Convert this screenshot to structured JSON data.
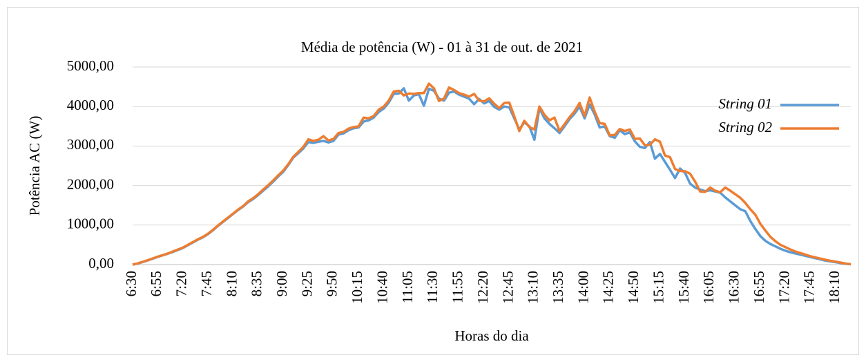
{
  "chart_data": {
    "type": "line",
    "title": "Média de potência (W) - 01 à 31 de out. de 2021",
    "x_label": "Horas do dia",
    "y_label": "Potência AC (W)",
    "categories": [
      "6:30",
      null,
      null,
      null,
      null,
      "6:55",
      null,
      null,
      null,
      null,
      "7:20",
      null,
      null,
      null,
      null,
      "7:45",
      null,
      null,
      null,
      null,
      "8:10",
      null,
      null,
      null,
      null,
      "8:35",
      null,
      null,
      null,
      null,
      "9:00",
      null,
      null,
      null,
      null,
      "9:25",
      null,
      null,
      null,
      null,
      "9:50",
      null,
      null,
      null,
      null,
      "10:15",
      null,
      null,
      null,
      null,
      "10:40",
      null,
      null,
      null,
      null,
      "11:05",
      null,
      null,
      null,
      null,
      "11:30",
      null,
      null,
      null,
      null,
      "11:55",
      null,
      null,
      null,
      null,
      "12:20",
      null,
      null,
      null,
      null,
      "12:45",
      null,
      null,
      null,
      null,
      "13:10",
      null,
      null,
      null,
      null,
      "13:35",
      null,
      null,
      null,
      null,
      "14:00",
      null,
      null,
      null,
      null,
      "14:25",
      null,
      null,
      null,
      null,
      "14:50",
      null,
      null,
      null,
      null,
      "15:15",
      null,
      null,
      null,
      null,
      "15:40",
      null,
      null,
      null,
      null,
      "16:05",
      null,
      null,
      null,
      null,
      "16:30",
      null,
      null,
      null,
      null,
      "16:55",
      null,
      null,
      null,
      null,
      "17:20",
      null,
      null,
      null,
      null,
      "17:45",
      null,
      null,
      null,
      null,
      "18:10",
      null,
      null,
      null
    ],
    "series": [
      {
        "name": "String 01",
        "color": "#5b9bd5",
        "values": [
          0,
          25,
          65,
          105,
          150,
          195,
          235,
          275,
          320,
          370,
          420,
          490,
          560,
          630,
          690,
          770,
          870,
          980,
          1080,
          1180,
          1280,
          1380,
          1470,
          1580,
          1660,
          1760,
          1870,
          1980,
          2100,
          2230,
          2350,
          2520,
          2710,
          2820,
          2940,
          3100,
          3080,
          3110,
          3130,
          3090,
          3130,
          3290,
          3320,
          3400,
          3450,
          3470,
          3620,
          3650,
          3720,
          3860,
          3950,
          4100,
          4320,
          4330,
          4460,
          4150,
          4280,
          4310,
          4020,
          4450,
          4400,
          4200,
          4150,
          4350,
          4380,
          4300,
          4250,
          4200,
          4060,
          4190,
          4080,
          4140,
          3990,
          3920,
          4000,
          3980,
          3700,
          3420,
          3600,
          3500,
          3160,
          3960,
          3700,
          3560,
          3450,
          3330,
          3500,
          3680,
          3820,
          4000,
          3700,
          4050,
          3800,
          3470,
          3500,
          3250,
          3210,
          3400,
          3300,
          3350,
          3120,
          2980,
          2950,
          3100,
          2680,
          2800,
          2600,
          2400,
          2190,
          2430,
          2320,
          2050,
          1950,
          1900,
          1860,
          1880,
          1850,
          1820,
          1700,
          1600,
          1500,
          1400,
          1350,
          1100,
          900,
          720,
          600,
          520,
          460,
          400,
          350,
          310,
          280,
          250,
          220,
          190,
          160,
          130,
          100,
          80,
          60,
          40,
          20,
          8
        ]
      },
      {
        "name": "String 02",
        "color": "#ed7d31",
        "values": [
          0,
          30,
          70,
          110,
          155,
          200,
          240,
          280,
          330,
          380,
          430,
          500,
          570,
          640,
          700,
          780,
          880,
          990,
          1090,
          1190,
          1290,
          1390,
          1480,
          1600,
          1680,
          1780,
          1900,
          2010,
          2130,
          2260,
          2380,
          2540,
          2730,
          2850,
          2980,
          3170,
          3130,
          3160,
          3250,
          3140,
          3180,
          3330,
          3360,
          3440,
          3480,
          3500,
          3720,
          3700,
          3760,
          3920,
          4000,
          4150,
          4380,
          4400,
          4280,
          4330,
          4320,
          4340,
          4340,
          4580,
          4460,
          4140,
          4200,
          4480,
          4420,
          4340,
          4300,
          4250,
          4320,
          4150,
          4130,
          4210,
          4070,
          3960,
          4090,
          4100,
          3750,
          3380,
          3640,
          3480,
          3420,
          4000,
          3790,
          3650,
          3720,
          3380,
          3550,
          3730,
          3880,
          4090,
          3760,
          4230,
          3870,
          3580,
          3560,
          3270,
          3280,
          3430,
          3380,
          3420,
          3180,
          3190,
          3020,
          3030,
          3170,
          3110,
          2760,
          2720,
          2420,
          2370,
          2360,
          2300,
          2100,
          1850,
          1840,
          1950,
          1870,
          1830,
          1950,
          1870,
          1780,
          1690,
          1560,
          1400,
          1260,
          1030,
          860,
          700,
          590,
          500,
          440,
          380,
          330,
          290,
          250,
          210,
          180,
          150,
          120,
          95,
          75,
          50,
          25,
          10
        ]
      }
    ],
    "ylim": [
      0,
      5000
    ],
    "yticks": [
      {
        "value": 0,
        "label": "0,00"
      },
      {
        "value": 1000,
        "label": "1000,00"
      },
      {
        "value": 2000,
        "label": "2000,00"
      },
      {
        "value": 3000,
        "label": "3000,00"
      },
      {
        "value": 4000,
        "label": "4000,00"
      },
      {
        "value": 5000,
        "label": "5000,00"
      }
    ],
    "grid": true,
    "legend": "right"
  }
}
